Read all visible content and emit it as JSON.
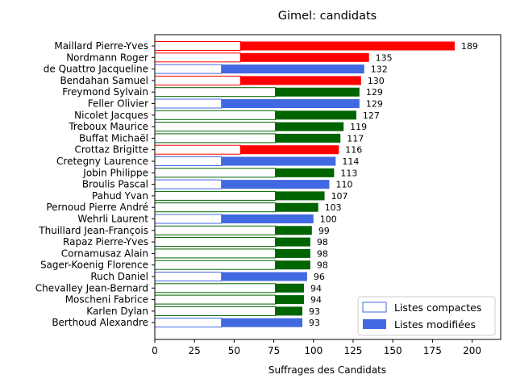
{
  "chart_data": {
    "type": "bar",
    "orientation": "horizontal",
    "stacked": true,
    "title": "Gimel: candidats",
    "xlabel": "Suffrages des Candidats",
    "ylabel": "",
    "xlim": [
      0,
      218
    ],
    "xticks": [
      0,
      25,
      50,
      75,
      100,
      125,
      150,
      175,
      200
    ],
    "legend": {
      "position": "lower-right",
      "entries": [
        "Listes compactes",
        "Listes modifiées"
      ]
    },
    "colors": {
      "red": "#ff0000",
      "green": "#006400",
      "blue": "#4169e1"
    },
    "categories": [
      "Maillard Pierre-Yves",
      "Nordmann Roger",
      "de Quattro Jacqueline",
      "Bendahan Samuel",
      "Freymond Sylvain",
      "Feller Olivier",
      "Nicolet Jacques",
      "Treboux Maurice",
      "Buffat Michaël",
      "Crottaz Brigitte",
      "Cretegny Laurence",
      "Jobin Philippe",
      "Broulis Pascal",
      "Pahud Yvan",
      "Pernoud Pierre André",
      "Wehrli Laurent",
      "Thuillard Jean-François",
      "Rapaz Pierre-Yves",
      "Cornamusaz Alain",
      "Sager-Koenig Florence",
      "Ruch Daniel",
      "Chevalley Jean-Bernard",
      "Moscheni Fabrice",
      "Karlen Dylan",
      "Berthoud Alexandre"
    ],
    "party_colors": [
      "red",
      "red",
      "blue",
      "red",
      "green",
      "blue",
      "green",
      "green",
      "green",
      "red",
      "blue",
      "green",
      "blue",
      "green",
      "green",
      "blue",
      "green",
      "green",
      "green",
      "green",
      "blue",
      "green",
      "green",
      "green",
      "blue"
    ],
    "series": [
      {
        "name": "Listes compactes",
        "values": [
          54,
          54,
          42,
          54,
          76,
          42,
          76,
          76,
          76,
          54,
          42,
          76,
          42,
          76,
          76,
          42,
          76,
          76,
          76,
          76,
          42,
          76,
          76,
          76,
          42
        ]
      },
      {
        "name": "Listes modifiées",
        "values": [
          135,
          81,
          90,
          76,
          53,
          87,
          51,
          43,
          41,
          62,
          72,
          37,
          68,
          31,
          27,
          58,
          23,
          22,
          22,
          22,
          54,
          18,
          18,
          17,
          51
        ]
      }
    ],
    "totals": [
      189,
      135,
      132,
      130,
      129,
      129,
      127,
      119,
      117,
      116,
      114,
      113,
      110,
      107,
      103,
      100,
      99,
      98,
      98,
      98,
      96,
      94,
      94,
      93,
      93
    ]
  }
}
